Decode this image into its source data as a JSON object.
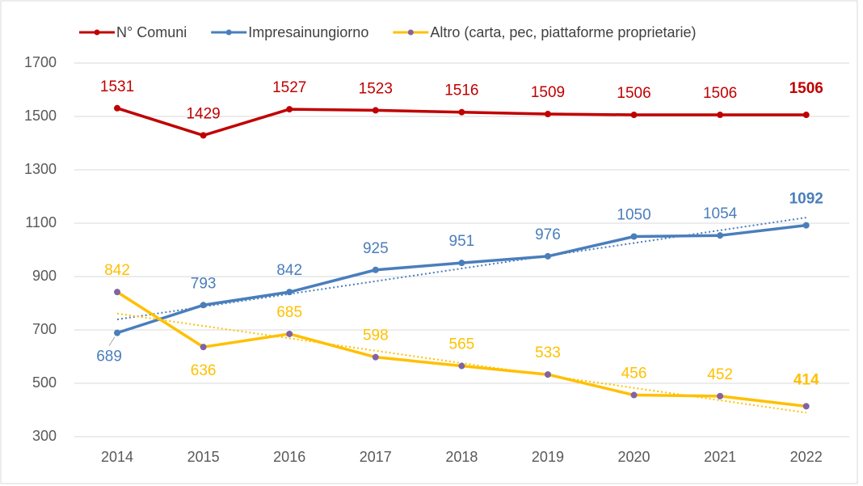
{
  "chart_data": {
    "type": "line",
    "categories": [
      "2014",
      "2015",
      "2016",
      "2017",
      "2018",
      "2019",
      "2020",
      "2021",
      "2022"
    ],
    "series": [
      {
        "name": "N° Comuni",
        "color": "#c00000",
        "marker_color": "#c00000",
        "values": [
          1531,
          1429,
          1527,
          1523,
          1516,
          1509,
          1506,
          1506,
          1506
        ],
        "trendline": false
      },
      {
        "name": "Impresainungiorno",
        "color": "#4a7ebb",
        "marker_color": "#4a7ebb",
        "values": [
          689,
          793,
          842,
          925,
          951,
          976,
          1050,
          1054,
          1092
        ],
        "trendline": true
      },
      {
        "name": "Altro (carta, pec, piattaforme proprietarie)",
        "color": "#ffc000",
        "marker_color": "#8064a2",
        "values": [
          842,
          636,
          685,
          598,
          565,
          533,
          456,
          452,
          414
        ],
        "trendline": true
      }
    ],
    "ylim": [
      300,
      1700
    ],
    "yticks": [
      300,
      500,
      700,
      900,
      1100,
      1300,
      1500,
      1700
    ],
    "grid": true,
    "legend": "top",
    "highlight_last": true
  }
}
